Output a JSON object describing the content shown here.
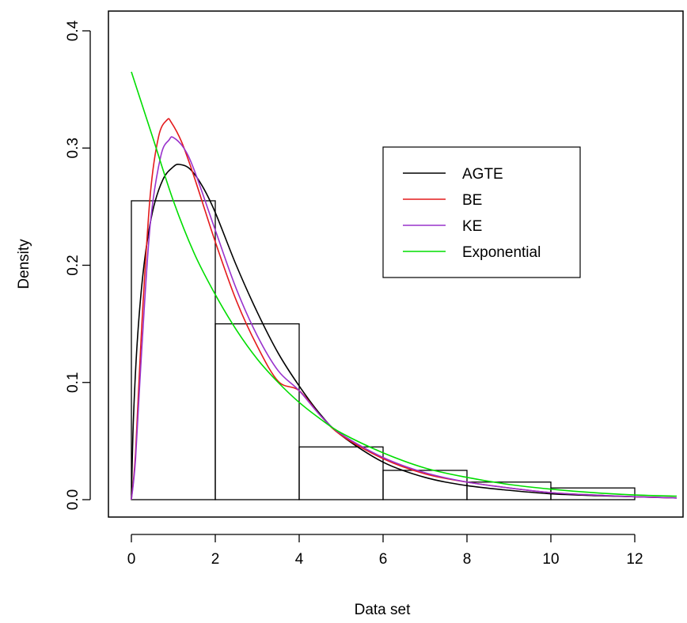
{
  "chart_data": {
    "type": "histogram",
    "xlabel": "Data set",
    "ylabel": "Density",
    "xlim": [
      -0.5,
      13
    ],
    "ylim": [
      0,
      0.4
    ],
    "x_ticks": [
      0,
      2,
      4,
      6,
      8,
      10,
      12
    ],
    "y_ticks": [
      0.0,
      0.1,
      0.2,
      0.3,
      0.4
    ],
    "x_tick_labels": [
      "0",
      "2",
      "4",
      "6",
      "8",
      "10",
      "12"
    ],
    "y_tick_labels": [
      "0.0",
      "0.1",
      "0.2",
      "0.3",
      "0.4"
    ],
    "grid": false,
    "legend_position": "top-right",
    "histogram": {
      "bins": [
        {
          "x0": 0,
          "x1": 2,
          "density": 0.255
        },
        {
          "x0": 2,
          "x1": 4,
          "density": 0.15
        },
        {
          "x0": 4,
          "x1": 6,
          "density": 0.045
        },
        {
          "x0": 6,
          "x1": 8,
          "density": 0.025
        },
        {
          "x0": 8,
          "x1": 10,
          "density": 0.015
        },
        {
          "x0": 10,
          "x1": 12,
          "density": 0.01
        }
      ]
    },
    "series": [
      {
        "name": "AGTE",
        "color": "#000000",
        "x": [
          0,
          0.05,
          0.15,
          0.3,
          0.5,
          0.75,
          1.0,
          1.15,
          1.4,
          1.7,
          2.0,
          2.5,
          3.0,
          3.5,
          4.0,
          4.5,
          5.0,
          6.0,
          7.0,
          8.0,
          9.0,
          10.0,
          11.0,
          12.0,
          13.0
        ],
        "y": [
          0,
          0.07,
          0.14,
          0.2,
          0.245,
          0.273,
          0.284,
          0.286,
          0.282,
          0.267,
          0.245,
          0.2,
          0.16,
          0.125,
          0.097,
          0.073,
          0.055,
          0.032,
          0.019,
          0.012,
          0.008,
          0.005,
          0.0035,
          0.0025,
          0.0015
        ]
      },
      {
        "name": "BE",
        "color": "#e41a1c",
        "x": [
          0,
          0.1,
          0.25,
          0.45,
          0.65,
          0.85,
          0.95,
          1.2,
          1.5,
          2.0,
          2.5,
          3.0,
          3.5,
          4.0,
          4.5,
          5.0,
          6.0,
          7.0,
          8.0,
          9.0,
          10.0,
          11.0,
          12.0,
          13.0
        ],
        "y": [
          0,
          0.04,
          0.15,
          0.26,
          0.31,
          0.324,
          0.322,
          0.305,
          0.275,
          0.22,
          0.17,
          0.131,
          0.101,
          0.093,
          0.072,
          0.055,
          0.035,
          0.022,
          0.015,
          0.01,
          0.006,
          0.004,
          0.0025,
          0.0015
        ]
      },
      {
        "name": "KE",
        "color": "#9932cc",
        "x": [
          0,
          0.1,
          0.25,
          0.45,
          0.7,
          0.9,
          1.0,
          1.25,
          1.5,
          2.0,
          2.5,
          3.0,
          3.5,
          4.0,
          4.5,
          5.0,
          6.0,
          7.0,
          8.0,
          9.0,
          10.0,
          11.0,
          12.0,
          13.0
        ],
        "y": [
          0,
          0.035,
          0.13,
          0.235,
          0.293,
          0.307,
          0.309,
          0.3,
          0.281,
          0.23,
          0.18,
          0.14,
          0.11,
          0.093,
          0.072,
          0.056,
          0.036,
          0.023,
          0.015,
          0.01,
          0.006,
          0.004,
          0.0025,
          0.0015
        ]
      },
      {
        "name": "Exponential",
        "color": "#00dd00",
        "x": [
          0,
          0.5,
          1.0,
          1.5,
          2.0,
          2.5,
          3.0,
          3.5,
          4.0,
          4.5,
          5.0,
          6.0,
          7.0,
          8.0,
          9.0,
          10.0,
          11.0,
          12.0,
          13.0
        ],
        "y": [
          0.365,
          0.31,
          0.255,
          0.21,
          0.175,
          0.145,
          0.12,
          0.1,
          0.083,
          0.069,
          0.057,
          0.04,
          0.027,
          0.019,
          0.013,
          0.009,
          0.006,
          0.004,
          0.003
        ]
      }
    ]
  }
}
